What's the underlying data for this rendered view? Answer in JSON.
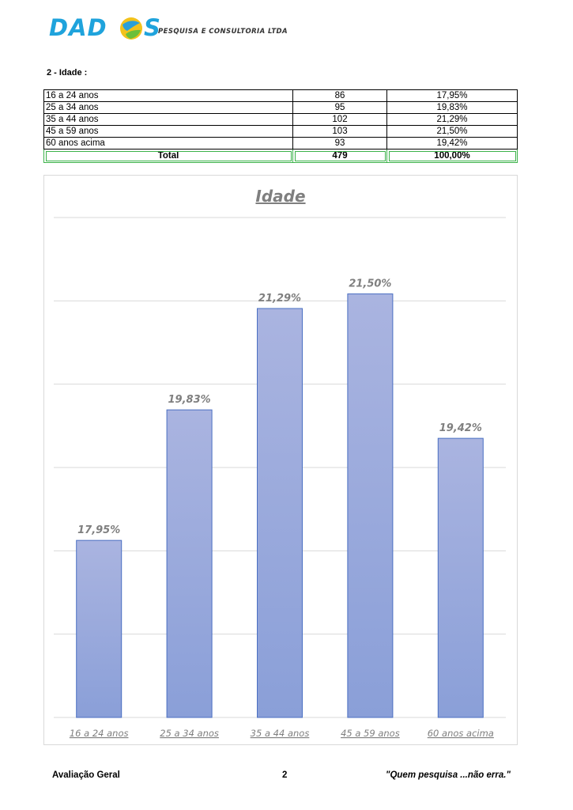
{
  "header": {
    "logo_word": "DAD",
    "logo_s": "S",
    "logo_tagline": "PESQUISA E CONSULTORIA LTDA"
  },
  "section_title": "2 - Idade :",
  "table": {
    "rows": [
      {
        "label": "16 a 24 anos",
        "count": "86",
        "pct": "17,95%"
      },
      {
        "label": "25 a 34 anos",
        "count": "95",
        "pct": "19,83%"
      },
      {
        "label": "35 a 44 anos",
        "count": "102",
        "pct": "21,29%"
      },
      {
        "label": "45 a 59 anos",
        "count": "103",
        "pct": "21,50%"
      },
      {
        "label": "60 anos acima",
        "count": "93",
        "pct": "19,42%"
      }
    ],
    "total": {
      "label": "Total",
      "count": "479",
      "pct": "100,00%"
    }
  },
  "chart_data": {
    "type": "bar",
    "title": "Idade",
    "categories": [
      "16 a 24 anos",
      "25 a 34 anos",
      "35 a 44 anos",
      "45 a 59 anos",
      "60 anos acima"
    ],
    "values": [
      17.95,
      19.83,
      21.29,
      21.5,
      19.42
    ],
    "data_labels": [
      "17,95%",
      "19,83%",
      "21,29%",
      "21,50%",
      "19,42%"
    ],
    "ylim": [
      15.4,
      22.6
    ],
    "grid": true,
    "colors": {
      "bar_top": "#aab4e0",
      "bar_bottom": "#8a9fd8",
      "bar_edge": "#4a6fc2",
      "label": "#7f7f7f"
    }
  },
  "footer": {
    "left": "Avaliação Geral",
    "center": "2",
    "right": "\"Quem pesquisa ...não erra.\""
  }
}
